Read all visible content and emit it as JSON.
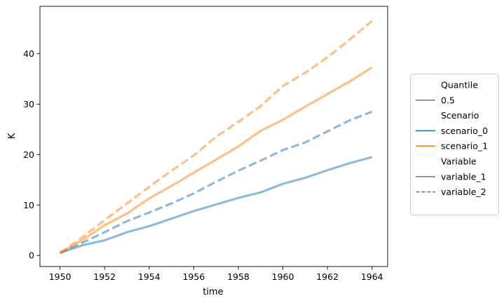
{
  "chart_data": {
    "type": "line",
    "xlabel": "time",
    "ylabel": "K",
    "xlim": [
      1949.1,
      1964.7
    ],
    "ylim": [
      -2.2,
      49.4
    ],
    "xticks": [
      1950,
      1952,
      1954,
      1956,
      1958,
      1960,
      1962,
      1964
    ],
    "yticks": [
      0,
      10,
      20,
      30,
      40
    ],
    "grid": false,
    "legend_placement": "right",
    "x": [
      1950,
      1951,
      1952,
      1953,
      1954,
      1955,
      1956,
      1957,
      1958,
      1959,
      1960,
      1961,
      1962,
      1963,
      1964
    ],
    "series": [
      {
        "scenario": "scenario_0",
        "variable": "variable_1",
        "quantile": "0.5",
        "color": "#1f77b4",
        "dash": "solid",
        "values": [
          0.5,
          2.0,
          3.0,
          4.6,
          5.8,
          7.3,
          8.8,
          10.1,
          11.4,
          12.5,
          14.2,
          15.4,
          16.9,
          18.3,
          19.5
        ]
      },
      {
        "scenario": "scenario_0",
        "variable": "variable_2",
        "quantile": "0.5",
        "color": "#1f77b4",
        "dash": "dashed",
        "values": [
          0.5,
          2.5,
          4.6,
          6.8,
          8.5,
          10.3,
          12.3,
          14.6,
          16.8,
          18.8,
          20.9,
          22.4,
          24.6,
          26.8,
          28.5
        ]
      },
      {
        "scenario": "scenario_1",
        "variable": "variable_1",
        "quantile": "0.5",
        "color": "#ff7f0e",
        "dash": "solid",
        "values": [
          0.5,
          3.0,
          6.0,
          8.3,
          11.3,
          13.8,
          16.4,
          19.0,
          21.6,
          24.7,
          26.9,
          29.5,
          32.0,
          34.5,
          37.3
        ]
      },
      {
        "scenario": "scenario_1",
        "variable": "variable_2",
        "quantile": "0.5",
        "color": "#ff7f0e",
        "dash": "dashed",
        "values": [
          0.5,
          3.6,
          7.0,
          10.3,
          13.6,
          16.8,
          19.8,
          23.5,
          26.5,
          29.6,
          33.6,
          36.2,
          39.3,
          42.8,
          46.5
        ]
      }
    ],
    "legend": {
      "sections": [
        {
          "title": "Quantile",
          "entries": [
            {
              "label": "0.5",
              "color": "#808080",
              "dash": "solid"
            }
          ]
        },
        {
          "title": "Scenario",
          "entries": [
            {
              "label": "scenario_0",
              "color": "#1f77b4",
              "dash": "solid"
            },
            {
              "label": "scenario_1",
              "color": "#ff7f0e",
              "dash": "solid"
            }
          ]
        },
        {
          "title": "Variable",
          "entries": [
            {
              "label": "variable_1",
              "color": "#808080",
              "dash": "solid"
            },
            {
              "label": "variable_2",
              "color": "#808080",
              "dash": "dashed"
            }
          ]
        }
      ]
    }
  }
}
